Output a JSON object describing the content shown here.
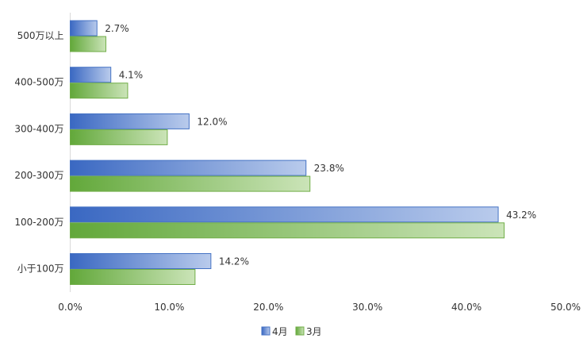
{
  "chart_data": {
    "type": "bar",
    "orientation": "horizontal",
    "categories": [
      "500万以上",
      "400-500万",
      "300-400万",
      "200-300万",
      "100-200万",
      "小于100万"
    ],
    "series": [
      {
        "name": "4月",
        "values": [
          2.7,
          4.1,
          12.0,
          23.8,
          43.2,
          14.2
        ],
        "color": "#4472C4",
        "labels_shown": true
      },
      {
        "name": "3月",
        "values": [
          3.6,
          5.8,
          9.8,
          24.2,
          43.8,
          12.6
        ],
        "color": "#70AD47",
        "labels_shown": false
      }
    ],
    "x_ticks": [
      "0.0%",
      "10.0%",
      "20.0%",
      "30.0%",
      "40.0%",
      "50.0%"
    ],
    "xlim": [
      0,
      50
    ],
    "data_labels": [
      "2.7%",
      "4.1%",
      "12.0%",
      "23.8%",
      "43.2%",
      "14.2%"
    ],
    "grid": false,
    "legend_position": "bottom-center"
  }
}
